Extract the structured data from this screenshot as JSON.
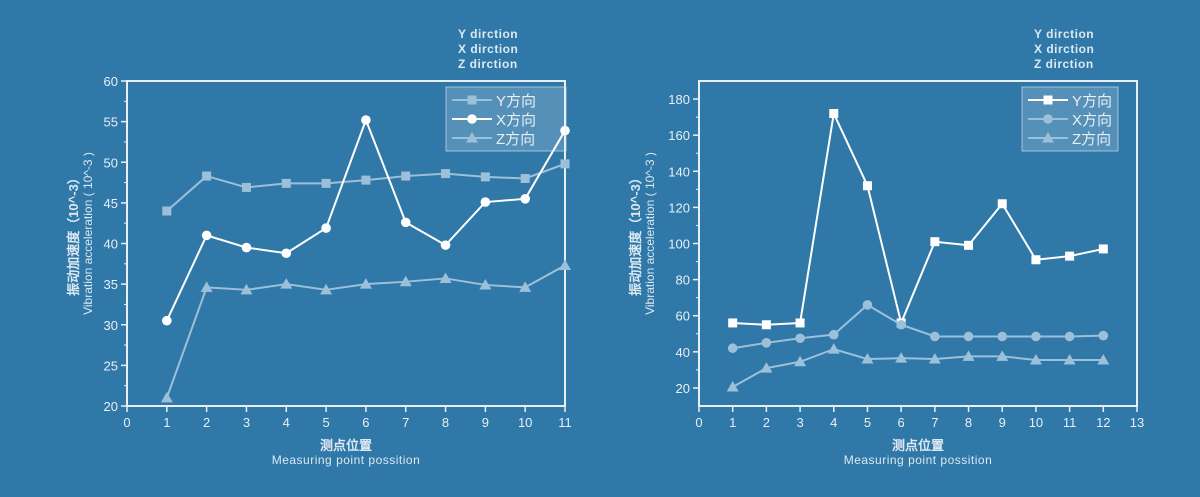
{
  "chart_data": [
    {
      "type": "line",
      "title": "",
      "annotation_lines": [
        "Y dirction",
        "X dirction",
        "Z dirction"
      ],
      "xlabel_cn": "测点位置",
      "xlabel_en": "Measuring point possition",
      "ylabel_cn": "振动加速度（10^-3）",
      "ylabel_en": "Vibration acceleration ( 10^-3 )",
      "xlim": [
        0,
        11
      ],
      "ylim": [
        20,
        60
      ],
      "xticks": [
        0,
        1,
        2,
        3,
        4,
        5,
        6,
        7,
        8,
        9,
        10,
        11
      ],
      "yticks": [
        20,
        25,
        30,
        35,
        40,
        45,
        50,
        55,
        60
      ],
      "grid": false,
      "legend_position": "top-right",
      "x": [
        1,
        2,
        3,
        4,
        5,
        6,
        7,
        8,
        9,
        10,
        11
      ],
      "series": [
        {
          "name": "Y方向",
          "marker": "square",
          "color": "#9cc0da",
          "values": [
            44.0,
            48.3,
            46.9,
            47.4,
            47.4,
            47.8,
            48.3,
            48.6,
            48.2,
            48.0,
            49.8
          ]
        },
        {
          "name": "X方向",
          "marker": "circle",
          "color": "#ffffff",
          "values": [
            30.5,
            41.0,
            39.5,
            38.8,
            41.9,
            55.2,
            42.6,
            39.8,
            45.1,
            45.5,
            53.9
          ]
        },
        {
          "name": "Z方向",
          "marker": "triangle",
          "color": "#9cc0da",
          "values": [
            21.0,
            34.6,
            34.3,
            35.0,
            34.3,
            35.0,
            35.3,
            35.7,
            34.9,
            34.6,
            37.3
          ]
        }
      ]
    },
    {
      "type": "line",
      "title": "",
      "annotation_lines": [
        "Y dirction",
        "X dirction",
        "Z dirction"
      ],
      "xlabel_cn": "测点位置",
      "xlabel_en": "Measuring point possition",
      "ylabel_cn": "振动加速度（10^-3）",
      "ylabel_en": "Vibration acceleration ( 10^-3 )",
      "xlim": [
        0,
        13
      ],
      "ylim": [
        10,
        190
      ],
      "xticks": [
        0,
        1,
        2,
        3,
        4,
        5,
        6,
        7,
        8,
        9,
        10,
        11,
        12,
        13
      ],
      "yticks": [
        20,
        40,
        60,
        80,
        100,
        120,
        140,
        160,
        180
      ],
      "grid": false,
      "legend_position": "top-right",
      "x": [
        1,
        2,
        3,
        4,
        5,
        6,
        7,
        8,
        9,
        10,
        11,
        12
      ],
      "series": [
        {
          "name": "Y方向",
          "marker": "square",
          "color": "#ffffff",
          "values": [
            56,
            55,
            56,
            172,
            132,
            56,
            101,
            99,
            122,
            91,
            93,
            97
          ]
        },
        {
          "name": "X方向",
          "marker": "circle",
          "color": "#9cc0da",
          "values": [
            42,
            45,
            47.5,
            49.5,
            66,
            55,
            48.5,
            48.5,
            48.5,
            48.5,
            48.5,
            49
          ]
        },
        {
          "name": "Z方向",
          "marker": "triangle",
          "color": "#9cc0da",
          "values": [
            20.5,
            31,
            34.5,
            41.5,
            36,
            36.5,
            36,
            37.5,
            37.5,
            35.5,
            35.5,
            35.5
          ]
        }
      ]
    }
  ],
  "colors": {
    "background": "#2f78a8",
    "axis": "#ffffff",
    "label": "#dce8f2",
    "legend_bg": "#5a93bb"
  }
}
